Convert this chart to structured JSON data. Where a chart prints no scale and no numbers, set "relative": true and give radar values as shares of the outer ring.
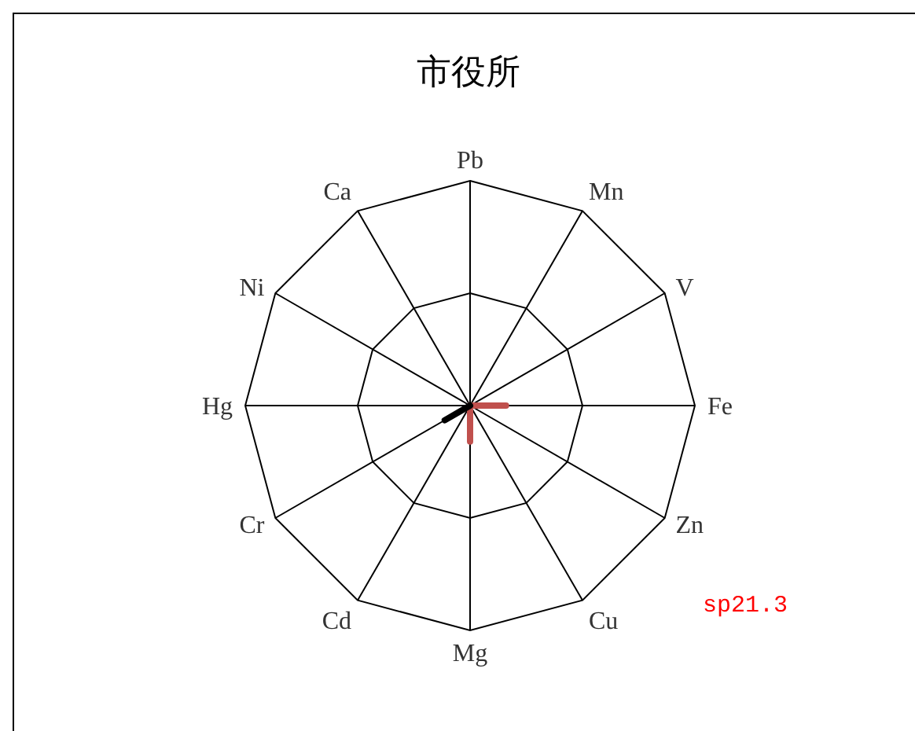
{
  "chart_data": {
    "type": "radar",
    "title": "市役所",
    "relative": true,
    "grid": true,
    "legend": false,
    "marker": "none",
    "categories": [
      "Pb",
      "Mn",
      "V",
      "Fe",
      "Zn",
      "Cu",
      "Mg",
      "Cd",
      "Cr",
      "Hg",
      "Ni",
      "Ca"
    ],
    "series": [
      {
        "color": "#c0504d",
        "values": [
          0,
          0,
          0,
          0.16,
          0,
          0,
          0.16,
          0,
          0,
          0,
          0,
          0
        ]
      },
      {
        "color": "#000000",
        "values": [
          0,
          0,
          0,
          0,
          0,
          0,
          0,
          0,
          0.13,
          0,
          0,
          0
        ]
      }
    ],
    "annotations": [
      "sp21.3"
    ]
  }
}
